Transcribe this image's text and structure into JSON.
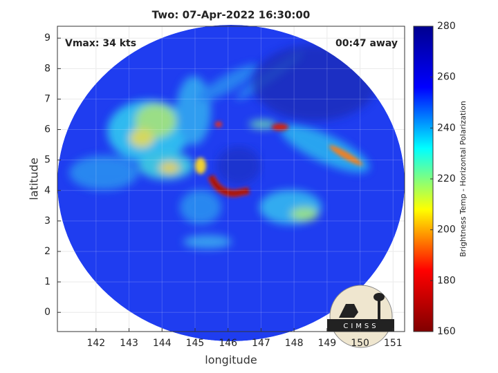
{
  "chart_data": {
    "type": "image",
    "title": "Two: 07-Apr-2022 16:30:00",
    "annotations": [
      "Vmax: 34 kts",
      "00:47 away"
    ],
    "xlabel": "longitude",
    "ylabel": "latitude",
    "xlim": [
      140.83,
      151.35
    ],
    "xticks": [
      142,
      143,
      144,
      145,
      146,
      147,
      148,
      149,
      150,
      151
    ],
    "ylim": [
      -0.63,
      9.39
    ],
    "yticks": [
      0,
      1,
      2,
      3,
      4,
      5,
      6,
      7,
      8,
      9
    ],
    "grid": true,
    "colorbar": {
      "label": "Brightness Temp - Horizontal Polarization",
      "lim": [
        160,
        280
      ],
      "ticks": [
        160,
        180,
        200,
        220,
        240,
        260,
        280
      ],
      "colormap": [
        "#800000",
        "#ff0000",
        "#ffff00",
        "#00ffff",
        "#0000ff",
        "#00008f"
      ]
    },
    "logo": "CIMSS"
  }
}
